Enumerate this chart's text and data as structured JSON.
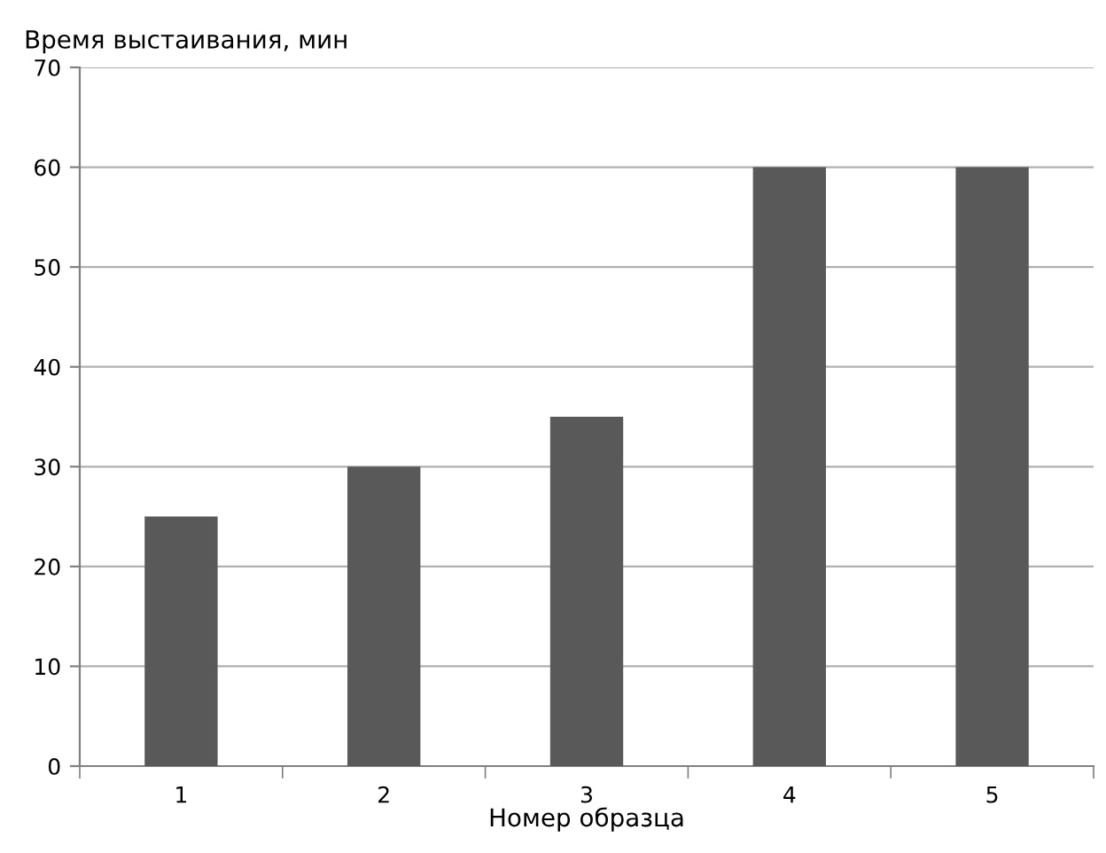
{
  "chart_data": {
    "type": "bar",
    "ylabel": "Время выстаивания, мин",
    "xlabel": "Номер образца",
    "categories": [
      "1",
      "2",
      "3",
      "4",
      "5"
    ],
    "values": [
      25,
      30,
      35,
      60,
      60
    ],
    "color": "#595959",
    "ylim": [
      0,
      70
    ],
    "yticks": [
      0,
      10,
      20,
      30,
      40,
      50,
      60,
      70
    ],
    "grid": "y",
    "legend": false
  }
}
